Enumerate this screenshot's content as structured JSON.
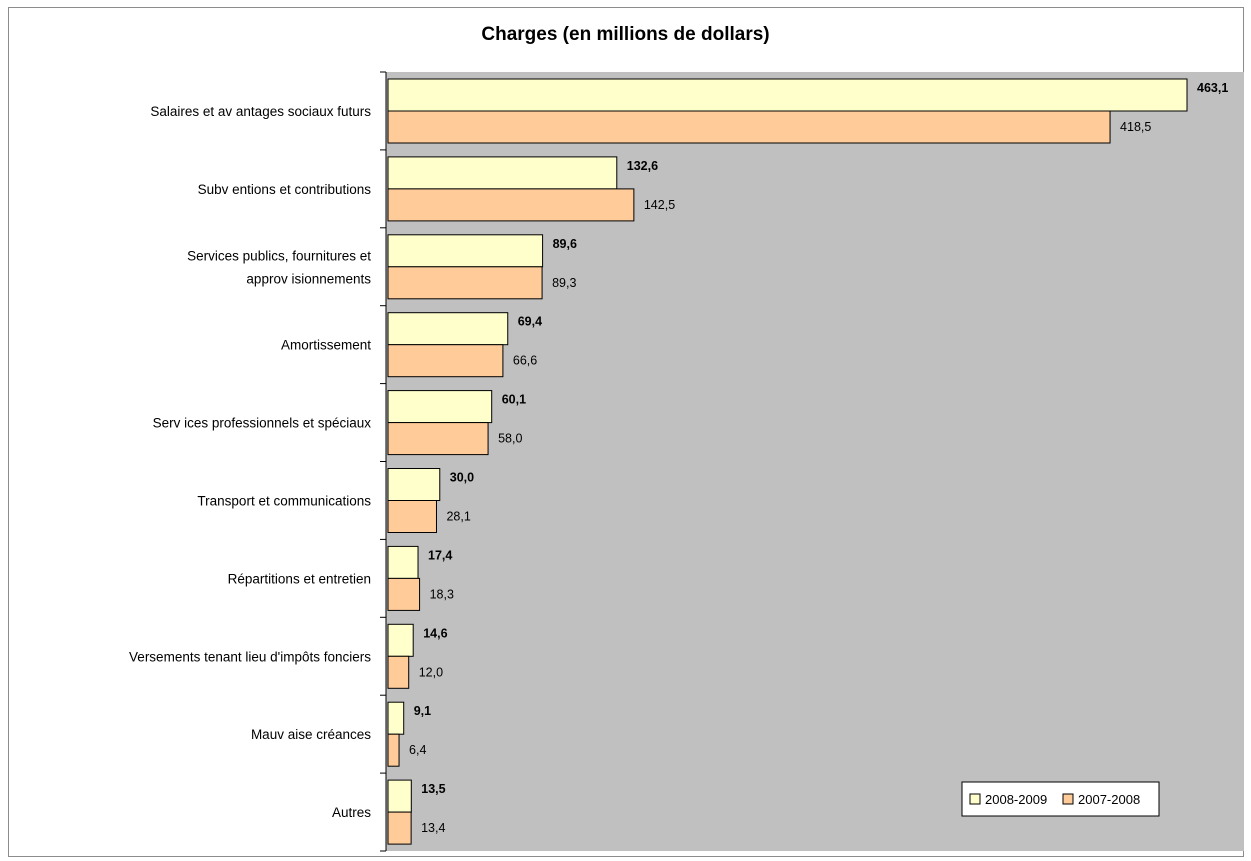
{
  "chart_data": {
    "type": "bar",
    "orientation": "horizontal",
    "title": "Charges (en millions de dollars)",
    "categories": [
      "Salaires et avantages sociaux futurs",
      "Subventions et contributions",
      "Services publics, fournitures et approvisionnements",
      "Amortissement",
      "Services professionnels et spéciaux",
      "Transport et communications",
      "Répartitions et entretien",
      "Versements tenant lieu d'impôts fonciers",
      "Mauvaise créances",
      "Autres"
    ],
    "category_lines": [
      [
        "Salaires et av antages sociaux futurs"
      ],
      [
        "Subv entions et contributions"
      ],
      [
        "Services publics, fournitures et",
        "approv isionnements"
      ],
      [
        "Amortissement"
      ],
      [
        "Serv ices professionnels et spéciaux"
      ],
      [
        "Transport et communications"
      ],
      [
        "Répartitions et entretien"
      ],
      [
        "Versements tenant lieu d'impôts fonciers"
      ],
      [
        "Mauv aise créances"
      ],
      [
        "Autres"
      ]
    ],
    "series": [
      {
        "name": "2008-2009",
        "values": [
          463.1,
          132.6,
          89.6,
          69.4,
          60.1,
          30.0,
          17.4,
          14.6,
          9.1,
          13.5
        ],
        "labels": [
          "463,1",
          "132,6",
          "89,6",
          "69,4",
          "60,1",
          "30,0",
          "17,4",
          "14,6",
          "9,1",
          "13,5"
        ],
        "color": "#ffffcc"
      },
      {
        "name": "2007-2008",
        "values": [
          418.5,
          142.5,
          89.3,
          66.6,
          58.0,
          28.1,
          18.3,
          12.0,
          6.4,
          13.4
        ],
        "labels": [
          "418,5",
          "142,5",
          "89,3",
          "66,6",
          "58,0",
          "28,1",
          "18,3",
          "12,0",
          "6,4",
          "13,4"
        ],
        "color": "#ffcc99"
      }
    ],
    "xlim": [
      0,
      500
    ],
    "plot_background": "#c0c0c0",
    "grid": false,
    "legend_position": "bottom-right"
  }
}
